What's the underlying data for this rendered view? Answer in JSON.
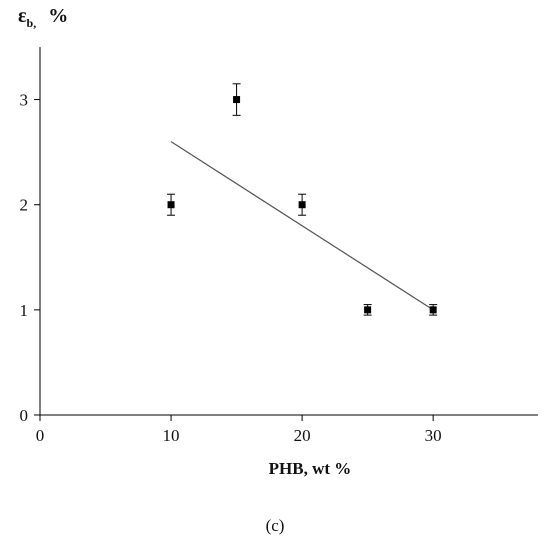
{
  "chart_data": {
    "type": "scatter",
    "xlabel": "PHB, wt %",
    "ylabel": {
      "symbol": "ε",
      "subscript": "b,",
      "unit": "%"
    },
    "caption": "(c)",
    "xlim": [
      0,
      38
    ],
    "ylim": [
      0,
      3.5
    ],
    "xticks": [
      0,
      10,
      20,
      30
    ],
    "yticks": [
      0,
      1,
      2,
      3
    ],
    "grid": false,
    "legend": "none",
    "series": [
      {
        "x": [
          10,
          15,
          20,
          25,
          30
        ],
        "y": [
          2,
          3,
          2,
          1,
          1
        ],
        "yerr": [
          0.1,
          0.15,
          0.1,
          0.05,
          0.05
        ],
        "marker": "square",
        "color": "#000000"
      }
    ],
    "trendline": {
      "type": "linear",
      "x": [
        10,
        30
      ],
      "y": [
        2.6,
        1.0
      ],
      "color": "#555555"
    }
  }
}
